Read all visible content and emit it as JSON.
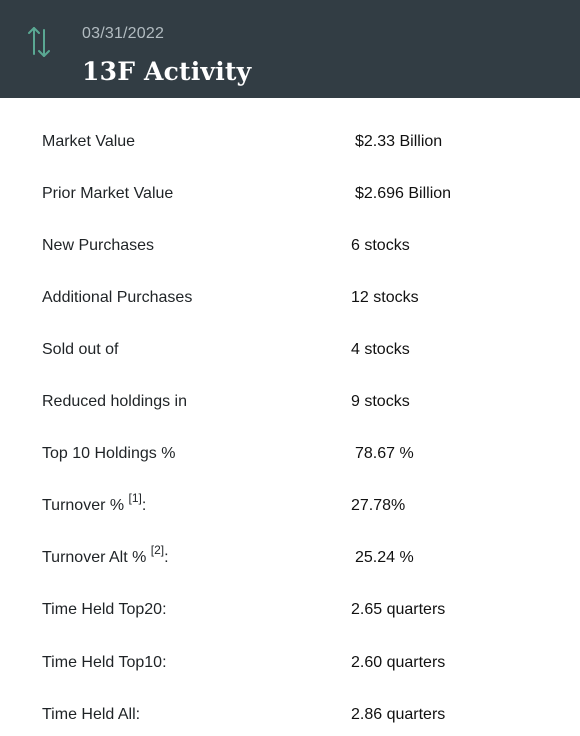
{
  "header": {
    "date": "03/31/2022",
    "title": "13F Activity",
    "icon": "swap-vertical-icon",
    "accent_color": "#5aa893"
  },
  "rows": [
    {
      "label": "Market Value",
      "value": "$2.33 Billion"
    },
    {
      "label": "Prior Market Value",
      "value": "$2.696 Billion"
    },
    {
      "label": "New Purchases",
      "value": "6 stocks"
    },
    {
      "label": "Additional Purchases",
      "value": "12 stocks"
    },
    {
      "label": "Sold out of",
      "value": "4 stocks"
    },
    {
      "label": "Reduced holdings in",
      "value": "9 stocks"
    },
    {
      "label": "Top 10 Holdings %",
      "value": "78.67 %"
    },
    {
      "label": "Turnover % ",
      "footnote": "[1]",
      "suffix": ":",
      "value": "27.78%"
    },
    {
      "label": "Turnover Alt % ",
      "footnote": "[2]",
      "suffix": ":",
      "value": "25.24 %"
    },
    {
      "label": "Time Held Top20:",
      "value": "2.65 quarters"
    },
    {
      "label": "Time Held Top10:",
      "value": "2.60 quarters"
    },
    {
      "label": "Time Held All:",
      "value": "2.86 quarters"
    }
  ]
}
